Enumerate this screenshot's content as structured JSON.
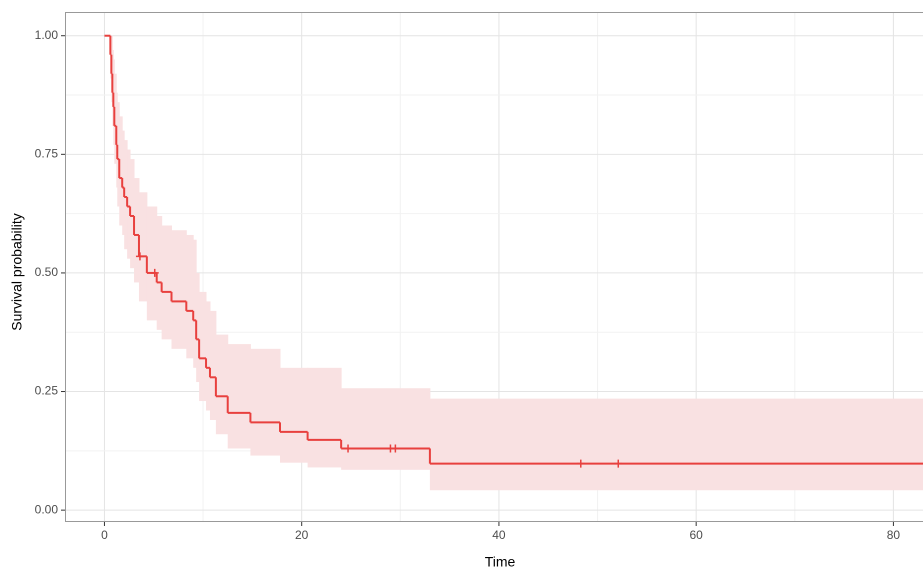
{
  "chart_data": {
    "type": "survival",
    "xlabel": "Time",
    "ylabel": "Survival probability",
    "color": "#e8403e",
    "band_color": "#f9e1e2",
    "grid": true,
    "xlim": [
      -4,
      83
    ],
    "ylim": [
      -0.025,
      1.05
    ],
    "xticks": [
      0,
      20,
      40,
      60,
      80
    ],
    "yticks": [
      {
        "value": 0,
        "label": "0.00"
      },
      {
        "value": 0.25,
        "label": "0.25"
      },
      {
        "value": 0.5,
        "label": "0.50"
      },
      {
        "value": 0.75,
        "label": "0.75"
      },
      {
        "value": 1,
        "label": "1.00"
      }
    ],
    "x": [
      0,
      0.6,
      0.7,
      0.8,
      0.9,
      1.0,
      1.2,
      1.3,
      1.5,
      1.8,
      2.0,
      2.3,
      2.6,
      3.0,
      3.5,
      4.3,
      5.3,
      5.8,
      6.8,
      8.3,
      9.0,
      9.3,
      9.6,
      10.3,
      10.7,
      11.3,
      12.5,
      14.8,
      17.8,
      20.6,
      24.0,
      33.0
    ],
    "values": [
      1.0,
      0.96,
      0.92,
      0.88,
      0.85,
      0.81,
      0.77,
      0.74,
      0.7,
      0.68,
      0.66,
      0.64,
      0.62,
      0.58,
      0.535,
      0.5,
      0.48,
      0.46,
      0.44,
      0.42,
      0.4,
      0.36,
      0.32,
      0.3,
      0.28,
      0.24,
      0.205,
      0.185,
      0.165,
      0.148,
      0.13,
      0.098
    ],
    "upper": [
      1.0,
      1.0,
      1.0,
      0.97,
      0.95,
      0.92,
      0.88,
      0.86,
      0.83,
      0.8,
      0.78,
      0.76,
      0.74,
      0.7,
      0.67,
      0.64,
      0.62,
      0.6,
      0.59,
      0.58,
      0.57,
      0.5,
      0.46,
      0.44,
      0.42,
      0.37,
      0.35,
      0.34,
      0.3,
      0.3,
      0.257,
      0.235
    ],
    "lower": [
      1.0,
      0.91,
      0.86,
      0.81,
      0.77,
      0.73,
      0.68,
      0.64,
      0.6,
      0.58,
      0.55,
      0.53,
      0.51,
      0.48,
      0.44,
      0.4,
      0.38,
      0.36,
      0.34,
      0.32,
      0.3,
      0.27,
      0.23,
      0.21,
      0.19,
      0.16,
      0.13,
      0.115,
      0.1,
      0.09,
      0.085,
      0.042
    ],
    "censor_x": [
      3.6,
      5.1,
      24.7,
      29.0,
      29.5,
      48.3,
      52.1
    ],
    "censor_values": [
      0.535,
      0.5,
      0.13,
      0.13,
      0.13,
      0.098,
      0.098
    ]
  }
}
